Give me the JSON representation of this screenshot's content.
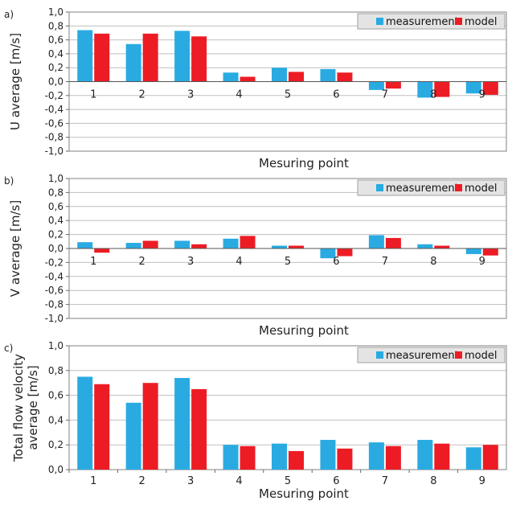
{
  "colors": {
    "measurement": "#29abe2",
    "model": "#ed1c24",
    "legend_bg": "#e4e4e4",
    "grid": "#bfbfbf",
    "frame": "#808080"
  },
  "chart_data": [
    {
      "panel_label": "a)",
      "type": "bar",
      "ylabel": "U average [m/s]",
      "xlabel": "Mesuring point",
      "ylim": [
        -1.0,
        1.0
      ],
      "yticks": [
        "-1,0",
        "-0,8",
        "-0,6",
        "-0,4",
        "-0,2",
        "0,0",
        "0,2",
        "0,4",
        "0,6",
        "0,8",
        "1,0"
      ],
      "ytick_values": [
        -1.0,
        -0.8,
        -0.6,
        -0.4,
        -0.2,
        0.0,
        0.2,
        0.4,
        0.6,
        0.8,
        1.0
      ],
      "categories": [
        "1",
        "2",
        "3",
        "4",
        "5",
        "6",
        "7",
        "8",
        "9"
      ],
      "category_position": "zero",
      "grid": true,
      "legend": "top-right",
      "series": [
        {
          "name": "measurement",
          "values": [
            0.74,
            0.54,
            0.73,
            0.13,
            0.2,
            0.18,
            -0.12,
            -0.23,
            -0.17
          ]
        },
        {
          "name": "model",
          "values": [
            0.69,
            0.69,
            0.65,
            0.07,
            0.14,
            0.13,
            -0.1,
            -0.22,
            -0.19
          ]
        }
      ]
    },
    {
      "panel_label": "b)",
      "type": "bar",
      "ylabel": "V average [m/s]",
      "xlabel": "Mesuring point",
      "ylim": [
        -1.0,
        1.0
      ],
      "yticks": [
        "-1,0",
        "-0,8",
        "-0,6",
        "-0,4",
        "-0,2",
        "0,0",
        "0,2",
        "0,4",
        "0,6",
        "0,8",
        "1,0"
      ],
      "ytick_values": [
        -1.0,
        -0.8,
        -0.6,
        -0.4,
        -0.2,
        0.0,
        0.2,
        0.4,
        0.6,
        0.8,
        1.0
      ],
      "categories": [
        "1",
        "2",
        "3",
        "4",
        "5",
        "6",
        "7",
        "8",
        "9"
      ],
      "category_position": "zero",
      "grid": true,
      "legend": "top-right",
      "series": [
        {
          "name": "measurement",
          "values": [
            0.09,
            0.08,
            0.11,
            0.14,
            0.04,
            -0.14,
            0.19,
            0.06,
            -0.08
          ]
        },
        {
          "name": "model",
          "values": [
            -0.06,
            0.11,
            0.06,
            0.18,
            0.04,
            -0.11,
            0.15,
            0.04,
            -0.1
          ]
        }
      ]
    },
    {
      "panel_label": "c)",
      "type": "bar",
      "ylabel": "Total flow velocity average [m/s]",
      "ylabel_lines": [
        "Total flow velocity",
        "average [m/s]"
      ],
      "xlabel": "Mesuring point",
      "ylim": [
        0.0,
        1.0
      ],
      "yticks": [
        "0,0",
        "0,2",
        "0,4",
        "0,6",
        "0,8",
        "1,0"
      ],
      "ytick_values": [
        0.0,
        0.2,
        0.4,
        0.6,
        0.8,
        1.0
      ],
      "categories": [
        "1",
        "2",
        "3",
        "4",
        "5",
        "6",
        "7",
        "8",
        "9"
      ],
      "category_position": "bottom",
      "grid": true,
      "legend": "top-right",
      "series": [
        {
          "name": "measurement",
          "values": [
            0.75,
            0.54,
            0.74,
            0.2,
            0.21,
            0.24,
            0.22,
            0.24,
            0.18
          ]
        },
        {
          "name": "model",
          "values": [
            0.69,
            0.7,
            0.65,
            0.19,
            0.15,
            0.17,
            0.19,
            0.21,
            0.2
          ]
        }
      ]
    }
  ]
}
